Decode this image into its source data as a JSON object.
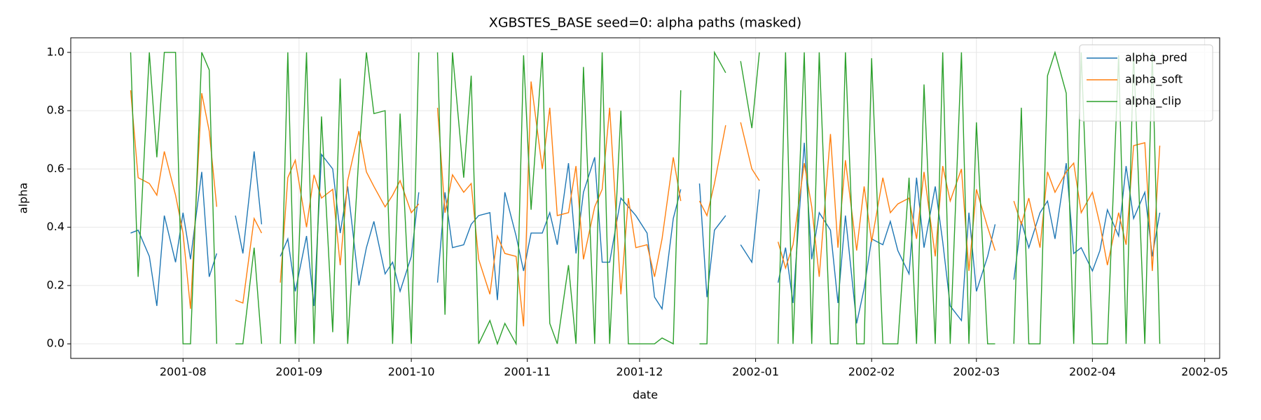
{
  "chart_data": {
    "type": "line",
    "title": "XGBSTES_BASE seed=0: alpha paths (masked)",
    "x_label": "date",
    "y_label": "alpha",
    "x": [
      "2001-07-18",
      "2001-07-20",
      "2001-07-23",
      "2001-07-25",
      "2001-07-27",
      "2001-07-30",
      "2001-08-01",
      "2001-08-03",
      "2001-08-06",
      "2001-08-08",
      "2001-08-10",
      "2001-08-13",
      "2001-08-15",
      "2001-08-17",
      "2001-08-20",
      "2001-08-22",
      "2001-08-24",
      "2001-08-27",
      "2001-08-29",
      "2001-08-31",
      "2001-09-03",
      "2001-09-05",
      "2001-09-07",
      "2001-09-10",
      "2001-09-12",
      "2001-09-14",
      "2001-09-17",
      "2001-09-19",
      "2001-09-21",
      "2001-09-24",
      "2001-09-26",
      "2001-09-28",
      "2001-10-01",
      "2001-10-03",
      "2001-10-05",
      "2001-10-08",
      "2001-10-10",
      "2001-10-12",
      "2001-10-15",
      "2001-10-17",
      "2001-10-19",
      "2001-10-22",
      "2001-10-24",
      "2001-10-26",
      "2001-10-29",
      "2001-10-31",
      "2001-11-02",
      "2001-11-05",
      "2001-11-07",
      "2001-11-09",
      "2001-11-12",
      "2001-11-14",
      "2001-11-16",
      "2001-11-19",
      "2001-11-21",
      "2001-11-23",
      "2001-11-26",
      "2001-11-28",
      "2001-11-30",
      "2001-12-03",
      "2001-12-05",
      "2001-12-07",
      "2001-12-10",
      "2001-12-12",
      "2001-12-14",
      "2001-12-17",
      "2001-12-19",
      "2001-12-21",
      "2001-12-24",
      "2001-12-26",
      "2001-12-28",
      "2001-12-31",
      "2002-01-02",
      "2002-01-04",
      "2002-01-07",
      "2002-01-09",
      "2002-01-11",
      "2002-01-14",
      "2002-01-16",
      "2002-01-18",
      "2002-01-21",
      "2002-01-23",
      "2002-01-25",
      "2002-01-28",
      "2002-01-30",
      "2002-02-01",
      "2002-02-04",
      "2002-02-06",
      "2002-02-08",
      "2002-02-11",
      "2002-02-13",
      "2002-02-15",
      "2002-02-18",
      "2002-02-20",
      "2002-02-22",
      "2002-02-25",
      "2002-02-27",
      "2002-03-01",
      "2002-03-04",
      "2002-03-06",
      "2002-03-08",
      "2002-03-11",
      "2002-03-13",
      "2002-03-15",
      "2002-03-18",
      "2002-03-20",
      "2002-03-22",
      "2002-03-25",
      "2002-03-27",
      "2002-03-29",
      "2002-04-01",
      "2002-04-03",
      "2002-04-05",
      "2002-04-08",
      "2002-04-10",
      "2002-04-12",
      "2002-04-15",
      "2002-04-17",
      "2002-04-19"
    ],
    "series": [
      {
        "name": "alpha_pred",
        "color": "#1f77b4",
        "values": [
          0.38,
          0.39,
          0.3,
          0.13,
          0.44,
          0.28,
          0.45,
          0.29,
          0.59,
          0.23,
          0.31,
          null,
          0.44,
          0.31,
          0.66,
          0.41,
          null,
          0.3,
          0.36,
          0.18,
          0.37,
          0.13,
          0.65,
          0.6,
          0.38,
          0.54,
          0.2,
          0.33,
          0.42,
          0.24,
          0.28,
          0.18,
          0.3,
          0.52,
          null,
          0.21,
          0.52,
          0.33,
          0.34,
          0.41,
          0.44,
          0.45,
          0.15,
          0.52,
          0.37,
          0.25,
          0.38,
          0.38,
          0.45,
          0.34,
          0.62,
          0.31,
          0.52,
          0.64,
          0.28,
          0.28,
          0.5,
          0.47,
          0.44,
          0.38,
          0.16,
          0.12,
          0.43,
          0.53,
          null,
          0.55,
          0.16,
          0.39,
          0.44,
          null,
          0.34,
          0.28,
          0.53,
          null,
          0.21,
          0.33,
          0.14,
          0.69,
          0.29,
          0.45,
          0.39,
          0.14,
          0.44,
          0.07,
          0.19,
          0.36,
          0.34,
          0.42,
          0.32,
          0.24,
          0.57,
          0.33,
          0.54,
          0.35,
          0.13,
          0.08,
          0.45,
          0.18,
          0.3,
          0.41,
          null,
          0.22,
          0.42,
          0.33,
          0.45,
          0.49,
          0.36,
          0.62,
          0.31,
          0.33,
          0.25,
          0.32,
          0.46,
          0.37,
          0.61,
          0.43,
          0.52,
          0.3,
          0.45
        ]
      },
      {
        "name": "alpha_soft",
        "color": "#ff7f0e",
        "values": [
          0.87,
          0.57,
          0.55,
          0.51,
          0.66,
          0.51,
          0.38,
          0.12,
          0.86,
          0.73,
          0.47,
          null,
          0.15,
          0.14,
          0.43,
          0.38,
          null,
          0.21,
          0.57,
          0.63,
          0.4,
          0.58,
          0.5,
          0.53,
          0.27,
          0.56,
          0.73,
          0.59,
          0.54,
          0.47,
          0.51,
          0.56,
          0.45,
          0.48,
          null,
          0.81,
          0.45,
          0.58,
          0.52,
          0.55,
          0.29,
          0.17,
          0.37,
          0.31,
          0.3,
          0.06,
          0.9,
          0.6,
          0.81,
          0.44,
          0.45,
          0.61,
          0.29,
          0.47,
          0.53,
          0.81,
          0.17,
          0.5,
          0.33,
          0.34,
          0.23,
          0.36,
          0.64,
          0.49,
          null,
          0.49,
          0.44,
          0.55,
          0.75,
          null,
          0.76,
          0.6,
          0.56,
          null,
          0.35,
          0.26,
          0.34,
          0.62,
          0.47,
          0.23,
          0.72,
          0.33,
          0.63,
          0.32,
          0.54,
          0.35,
          0.57,
          0.45,
          0.48,
          0.5,
          0.36,
          0.59,
          0.3,
          0.61,
          0.49,
          0.6,
          0.25,
          0.53,
          0.4,
          0.32,
          null,
          0.49,
          0.41,
          0.5,
          0.33,
          0.59,
          0.52,
          0.59,
          0.62,
          0.45,
          0.52,
          0.41,
          0.27,
          0.45,
          0.34,
          0.68,
          0.69,
          0.25,
          0.68
        ]
      },
      {
        "name": "alpha_clip",
        "color": "#2ca02c",
        "values": [
          1.0,
          0.23,
          1.0,
          0.64,
          1.0,
          1.0,
          0.0,
          0.0,
          1.0,
          0.94,
          0.0,
          null,
          0.0,
          0.0,
          0.33,
          0.0,
          null,
          0.0,
          1.0,
          0.0,
          1.0,
          0.0,
          0.78,
          0.04,
          0.91,
          0.0,
          0.65,
          1.0,
          0.79,
          0.8,
          0.0,
          0.79,
          0.0,
          1.0,
          null,
          1.0,
          0.1,
          1.0,
          0.57,
          0.92,
          0.0,
          0.08,
          0.0,
          0.07,
          0.0,
          0.99,
          0.46,
          1.0,
          0.07,
          0.0,
          0.27,
          0.0,
          0.95,
          0.0,
          1.0,
          0.0,
          0.8,
          0.0,
          0.0,
          0.0,
          0.0,
          0.02,
          0.0,
          0.87,
          null,
          0.0,
          0.0,
          1.0,
          0.93,
          null,
          0.97,
          0.74,
          1.0,
          null,
          0.0,
          1.0,
          0.0,
          1.0,
          0.0,
          1.0,
          0.0,
          0.0,
          1.0,
          0.0,
          0.0,
          0.98,
          0.0,
          0.0,
          0.0,
          0.57,
          0.0,
          0.89,
          0.0,
          1.0,
          0.0,
          1.0,
          0.0,
          0.76,
          0.0,
          0.0,
          null,
          0.0,
          0.81,
          0.0,
          0.0,
          0.92,
          1.0,
          0.86,
          0.0,
          1.0,
          0.0,
          0.0,
          0.0,
          0.99,
          0.0,
          1.0,
          0.0,
          1.0,
          0.0
        ]
      }
    ],
    "xlim": [
      "2001-07-02",
      "2002-05-05"
    ],
    "xticks": [
      {
        "value": "2001-08-01",
        "label": "2001-08"
      },
      {
        "value": "2001-09-01",
        "label": "2001-09"
      },
      {
        "value": "2001-10-01",
        "label": "2001-10"
      },
      {
        "value": "2001-11-01",
        "label": "2001-11"
      },
      {
        "value": "2001-12-01",
        "label": "2001-12"
      },
      {
        "value": "2002-01-01",
        "label": "2002-01"
      },
      {
        "value": "2002-02-01",
        "label": "2002-02"
      },
      {
        "value": "2002-03-01",
        "label": "2002-03"
      },
      {
        "value": "2002-04-01",
        "label": "2002-04"
      },
      {
        "value": "2002-05-01",
        "label": "2002-05"
      }
    ],
    "ylim": [
      -0.05,
      1.05
    ],
    "yticks": [
      {
        "value": 0,
        "label": "0.0"
      },
      0.2,
      0.4,
      0.6,
      0.8,
      {
        "value": 1,
        "label": "1.0"
      }
    ],
    "grid": true,
    "legend": "upper right"
  }
}
